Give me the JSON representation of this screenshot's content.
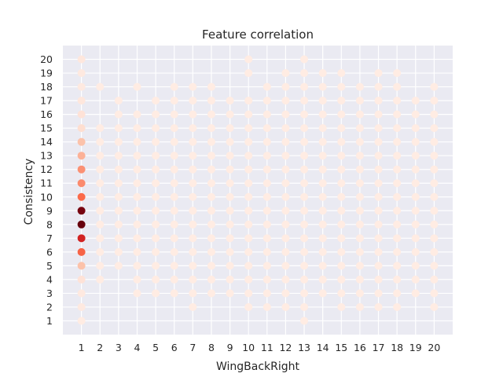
{
  "chart_data": {
    "type": "scatter",
    "title": "Feature correlation",
    "xlabel": "WingBackRight",
    "ylabel": "Consistency",
    "xlim": [
      0,
      21
    ],
    "ylim": [
      0,
      21
    ],
    "xticks": [
      1,
      2,
      3,
      4,
      5,
      6,
      7,
      8,
      9,
      10,
      11,
      12,
      13,
      14,
      15,
      16,
      17,
      18,
      19,
      20
    ],
    "yticks": [
      1,
      2,
      3,
      4,
      5,
      6,
      7,
      8,
      9,
      10,
      11,
      12,
      13,
      14,
      15,
      16,
      17,
      18,
      19,
      20
    ],
    "grid": true,
    "background": "#eaeaf2",
    "grid_color": "#ffffff",
    "colormap": "Reds",
    "color_scale": [
      {
        "t": 0.0,
        "color": "#fff5f0"
      },
      {
        "t": 0.25,
        "color": "#fcbba1"
      },
      {
        "t": 0.5,
        "color": "#fb6a4a"
      },
      {
        "t": 0.75,
        "color": "#cb181d"
      },
      {
        "t": 1.0,
        "color": "#67000d"
      }
    ],
    "points_note": "x, y, intensity (0-1 relative frequency)",
    "points": [
      [
        1,
        20,
        0.06
      ],
      [
        1,
        19,
        0.05
      ],
      [
        1,
        18,
        0.05
      ],
      [
        1,
        17,
        0.06
      ],
      [
        1,
        16,
        0.08
      ],
      [
        1,
        15,
        0.1
      ],
      [
        1,
        14,
        0.22
      ],
      [
        1,
        13,
        0.28
      ],
      [
        1,
        12,
        0.38
      ],
      [
        1,
        11,
        0.4
      ],
      [
        1,
        10,
        0.5
      ],
      [
        1,
        9,
        0.96
      ],
      [
        1,
        8,
        1.0
      ],
      [
        1,
        7,
        0.72
      ],
      [
        1,
        6,
        0.52
      ],
      [
        1,
        5,
        0.22
      ],
      [
        1,
        4,
        0.08
      ],
      [
        1,
        3,
        0.05
      ],
      [
        1,
        2,
        0.05
      ],
      [
        1,
        1,
        0.04
      ],
      [
        2,
        18,
        0.04
      ],
      [
        2,
        15,
        0.04
      ],
      [
        2,
        14,
        0.04
      ],
      [
        2,
        13,
        0.04
      ],
      [
        2,
        12,
        0.04
      ],
      [
        2,
        11,
        0.04
      ],
      [
        2,
        10,
        0.04
      ],
      [
        2,
        9,
        0.04
      ],
      [
        2,
        8,
        0.04
      ],
      [
        2,
        7,
        0.04
      ],
      [
        2,
        6,
        0.04
      ],
      [
        2,
        5,
        0.04
      ],
      [
        2,
        4,
        0.04
      ],
      [
        3,
        17,
        0.04
      ],
      [
        3,
        16,
        0.04
      ],
      [
        3,
        15,
        0.04
      ],
      [
        3,
        14,
        0.04
      ],
      [
        3,
        13,
        0.04
      ],
      [
        3,
        12,
        0.04
      ],
      [
        3,
        11,
        0.04
      ],
      [
        3,
        10,
        0.04
      ],
      [
        3,
        9,
        0.04
      ],
      [
        3,
        8,
        0.04
      ],
      [
        3,
        7,
        0.04
      ],
      [
        3,
        6,
        0.04
      ],
      [
        3,
        5,
        0.04
      ],
      [
        4,
        18,
        0.04
      ],
      [
        4,
        16,
        0.04
      ],
      [
        4,
        15,
        0.04
      ],
      [
        4,
        14,
        0.04
      ],
      [
        4,
        13,
        0.04
      ],
      [
        4,
        12,
        0.04
      ],
      [
        4,
        11,
        0.04
      ],
      [
        4,
        10,
        0.04
      ],
      [
        4,
        9,
        0.04
      ],
      [
        4,
        8,
        0.04
      ],
      [
        4,
        7,
        0.04
      ],
      [
        4,
        6,
        0.04
      ],
      [
        4,
        5,
        0.04
      ],
      [
        4,
        4,
        0.04
      ],
      [
        4,
        3,
        0.04
      ],
      [
        5,
        17,
        0.04
      ],
      [
        5,
        16,
        0.04
      ],
      [
        5,
        15,
        0.04
      ],
      [
        5,
        14,
        0.04
      ],
      [
        5,
        13,
        0.04
      ],
      [
        5,
        12,
        0.04
      ],
      [
        5,
        11,
        0.04
      ],
      [
        5,
        10,
        0.04
      ],
      [
        5,
        9,
        0.04
      ],
      [
        5,
        8,
        0.04
      ],
      [
        5,
        7,
        0.04
      ],
      [
        5,
        6,
        0.04
      ],
      [
        5,
        5,
        0.04
      ],
      [
        5,
        4,
        0.04
      ],
      [
        5,
        3,
        0.04
      ],
      [
        6,
        18,
        0.04
      ],
      [
        6,
        17,
        0.04
      ],
      [
        6,
        16,
        0.04
      ],
      [
        6,
        15,
        0.04
      ],
      [
        6,
        14,
        0.04
      ],
      [
        6,
        13,
        0.04
      ],
      [
        6,
        12,
        0.04
      ],
      [
        6,
        11,
        0.04
      ],
      [
        6,
        10,
        0.04
      ],
      [
        6,
        9,
        0.04
      ],
      [
        6,
        8,
        0.04
      ],
      [
        6,
        7,
        0.04
      ],
      [
        6,
        6,
        0.04
      ],
      [
        6,
        5,
        0.04
      ],
      [
        6,
        4,
        0.04
      ],
      [
        6,
        3,
        0.04
      ],
      [
        7,
        18,
        0.04
      ],
      [
        7,
        17,
        0.04
      ],
      [
        7,
        16,
        0.04
      ],
      [
        7,
        15,
        0.04
      ],
      [
        7,
        14,
        0.04
      ],
      [
        7,
        13,
        0.04
      ],
      [
        7,
        12,
        0.04
      ],
      [
        7,
        11,
        0.04
      ],
      [
        7,
        10,
        0.04
      ],
      [
        7,
        9,
        0.04
      ],
      [
        7,
        8,
        0.04
      ],
      [
        7,
        7,
        0.04
      ],
      [
        7,
        6,
        0.04
      ],
      [
        7,
        5,
        0.04
      ],
      [
        7,
        4,
        0.04
      ],
      [
        7,
        3,
        0.04
      ],
      [
        7,
        2,
        0.04
      ],
      [
        8,
        18,
        0.04
      ],
      [
        8,
        17,
        0.04
      ],
      [
        8,
        16,
        0.04
      ],
      [
        8,
        15,
        0.04
      ],
      [
        8,
        14,
        0.04
      ],
      [
        8,
        13,
        0.04
      ],
      [
        8,
        12,
        0.04
      ],
      [
        8,
        11,
        0.04
      ],
      [
        8,
        10,
        0.04
      ],
      [
        8,
        9,
        0.04
      ],
      [
        8,
        8,
        0.04
      ],
      [
        8,
        7,
        0.04
      ],
      [
        8,
        6,
        0.04
      ],
      [
        8,
        5,
        0.04
      ],
      [
        8,
        4,
        0.04
      ],
      [
        8,
        3,
        0.04
      ],
      [
        9,
        17,
        0.04
      ],
      [
        9,
        16,
        0.04
      ],
      [
        9,
        15,
        0.04
      ],
      [
        9,
        14,
        0.04
      ],
      [
        9,
        13,
        0.04
      ],
      [
        9,
        12,
        0.04
      ],
      [
        9,
        11,
        0.04
      ],
      [
        9,
        10,
        0.04
      ],
      [
        9,
        9,
        0.04
      ],
      [
        9,
        8,
        0.04
      ],
      [
        9,
        7,
        0.04
      ],
      [
        9,
        6,
        0.04
      ],
      [
        9,
        5,
        0.04
      ],
      [
        9,
        4,
        0.04
      ],
      [
        9,
        3,
        0.04
      ],
      [
        10,
        20,
        0.04
      ],
      [
        10,
        19,
        0.04
      ],
      [
        10,
        17,
        0.04
      ],
      [
        10,
        16,
        0.04
      ],
      [
        10,
        15,
        0.04
      ],
      [
        10,
        14,
        0.04
      ],
      [
        10,
        13,
        0.04
      ],
      [
        10,
        12,
        0.04
      ],
      [
        10,
        11,
        0.04
      ],
      [
        10,
        10,
        0.04
      ],
      [
        10,
        9,
        0.04
      ],
      [
        10,
        8,
        0.04
      ],
      [
        10,
        7,
        0.04
      ],
      [
        10,
        6,
        0.04
      ],
      [
        10,
        5,
        0.04
      ],
      [
        10,
        4,
        0.04
      ],
      [
        10,
        3,
        0.04
      ],
      [
        10,
        2,
        0.04
      ],
      [
        11,
        18,
        0.04
      ],
      [
        11,
        17,
        0.04
      ],
      [
        11,
        16,
        0.04
      ],
      [
        11,
        15,
        0.04
      ],
      [
        11,
        14,
        0.04
      ],
      [
        11,
        13,
        0.04
      ],
      [
        11,
        12,
        0.04
      ],
      [
        11,
        11,
        0.04
      ],
      [
        11,
        10,
        0.04
      ],
      [
        11,
        9,
        0.04
      ],
      [
        11,
        8,
        0.04
      ],
      [
        11,
        7,
        0.04
      ],
      [
        11,
        6,
        0.04
      ],
      [
        11,
        5,
        0.04
      ],
      [
        11,
        4,
        0.04
      ],
      [
        11,
        3,
        0.04
      ],
      [
        11,
        2,
        0.04
      ],
      [
        12,
        19,
        0.04
      ],
      [
        12,
        18,
        0.04
      ],
      [
        12,
        17,
        0.04
      ],
      [
        12,
        16,
        0.04
      ],
      [
        12,
        15,
        0.04
      ],
      [
        12,
        14,
        0.04
      ],
      [
        12,
        13,
        0.04
      ],
      [
        12,
        12,
        0.04
      ],
      [
        12,
        11,
        0.04
      ],
      [
        12,
        10,
        0.04
      ],
      [
        12,
        9,
        0.04
      ],
      [
        12,
        8,
        0.04
      ],
      [
        12,
        7,
        0.04
      ],
      [
        12,
        6,
        0.04
      ],
      [
        12,
        5,
        0.04
      ],
      [
        12,
        4,
        0.04
      ],
      [
        12,
        3,
        0.04
      ],
      [
        12,
        2,
        0.04
      ],
      [
        13,
        20,
        0.04
      ],
      [
        13,
        19,
        0.04
      ],
      [
        13,
        18,
        0.04
      ],
      [
        13,
        17,
        0.04
      ],
      [
        13,
        16,
        0.04
      ],
      [
        13,
        15,
        0.04
      ],
      [
        13,
        14,
        0.04
      ],
      [
        13,
        13,
        0.04
      ],
      [
        13,
        12,
        0.04
      ],
      [
        13,
        11,
        0.04
      ],
      [
        13,
        10,
        0.04
      ],
      [
        13,
        9,
        0.04
      ],
      [
        13,
        8,
        0.04
      ],
      [
        13,
        7,
        0.04
      ],
      [
        13,
        6,
        0.04
      ],
      [
        13,
        5,
        0.04
      ],
      [
        13,
        4,
        0.04
      ],
      [
        13,
        3,
        0.04
      ],
      [
        13,
        2,
        0.04
      ],
      [
        13,
        1,
        0.04
      ],
      [
        14,
        19,
        0.04
      ],
      [
        14,
        18,
        0.04
      ],
      [
        14,
        17,
        0.04
      ],
      [
        14,
        16,
        0.04
      ],
      [
        14,
        15,
        0.04
      ],
      [
        14,
        14,
        0.04
      ],
      [
        14,
        13,
        0.04
      ],
      [
        14,
        12,
        0.04
      ],
      [
        14,
        11,
        0.04
      ],
      [
        14,
        10,
        0.04
      ],
      [
        14,
        9,
        0.04
      ],
      [
        14,
        8,
        0.04
      ],
      [
        14,
        7,
        0.04
      ],
      [
        14,
        6,
        0.04
      ],
      [
        14,
        5,
        0.04
      ],
      [
        14,
        4,
        0.04
      ],
      [
        14,
        3,
        0.04
      ],
      [
        15,
        19,
        0.04
      ],
      [
        15,
        18,
        0.04
      ],
      [
        15,
        17,
        0.04
      ],
      [
        15,
        16,
        0.04
      ],
      [
        15,
        15,
        0.04
      ],
      [
        15,
        14,
        0.04
      ],
      [
        15,
        13,
        0.04
      ],
      [
        15,
        12,
        0.04
      ],
      [
        15,
        11,
        0.04
      ],
      [
        15,
        10,
        0.04
      ],
      [
        15,
        9,
        0.04
      ],
      [
        15,
        8,
        0.04
      ],
      [
        15,
        7,
        0.04
      ],
      [
        15,
        6,
        0.04
      ],
      [
        15,
        5,
        0.04
      ],
      [
        15,
        4,
        0.04
      ],
      [
        15,
        3,
        0.04
      ],
      [
        15,
        2,
        0.04
      ],
      [
        16,
        18,
        0.04
      ],
      [
        16,
        17,
        0.04
      ],
      [
        16,
        16,
        0.04
      ],
      [
        16,
        15,
        0.04
      ],
      [
        16,
        14,
        0.04
      ],
      [
        16,
        13,
        0.04
      ],
      [
        16,
        12,
        0.04
      ],
      [
        16,
        11,
        0.04
      ],
      [
        16,
        10,
        0.04
      ],
      [
        16,
        9,
        0.04
      ],
      [
        16,
        8,
        0.04
      ],
      [
        16,
        7,
        0.04
      ],
      [
        16,
        6,
        0.04
      ],
      [
        16,
        5,
        0.04
      ],
      [
        16,
        4,
        0.04
      ],
      [
        16,
        3,
        0.04
      ],
      [
        16,
        2,
        0.04
      ],
      [
        17,
        19,
        0.04
      ],
      [
        17,
        18,
        0.04
      ],
      [
        17,
        17,
        0.04
      ],
      [
        17,
        16,
        0.04
      ],
      [
        17,
        15,
        0.04
      ],
      [
        17,
        14,
        0.04
      ],
      [
        17,
        13,
        0.04
      ],
      [
        17,
        12,
        0.04
      ],
      [
        17,
        11,
        0.04
      ],
      [
        17,
        10,
        0.04
      ],
      [
        17,
        9,
        0.04
      ],
      [
        17,
        8,
        0.04
      ],
      [
        17,
        7,
        0.04
      ],
      [
        17,
        6,
        0.04
      ],
      [
        17,
        5,
        0.04
      ],
      [
        17,
        4,
        0.04
      ],
      [
        17,
        3,
        0.04
      ],
      [
        17,
        2,
        0.04
      ],
      [
        18,
        19,
        0.04
      ],
      [
        18,
        18,
        0.04
      ],
      [
        18,
        17,
        0.04
      ],
      [
        18,
        16,
        0.04
      ],
      [
        18,
        15,
        0.04
      ],
      [
        18,
        14,
        0.04
      ],
      [
        18,
        13,
        0.04
      ],
      [
        18,
        12,
        0.04
      ],
      [
        18,
        11,
        0.04
      ],
      [
        18,
        10,
        0.04
      ],
      [
        18,
        9,
        0.04
      ],
      [
        18,
        8,
        0.04
      ],
      [
        18,
        7,
        0.04
      ],
      [
        18,
        6,
        0.04
      ],
      [
        18,
        5,
        0.04
      ],
      [
        18,
        4,
        0.04
      ],
      [
        18,
        3,
        0.04
      ],
      [
        18,
        2,
        0.04
      ],
      [
        19,
        17,
        0.04
      ],
      [
        19,
        16,
        0.04
      ],
      [
        19,
        15,
        0.04
      ],
      [
        19,
        14,
        0.04
      ],
      [
        19,
        13,
        0.04
      ],
      [
        19,
        12,
        0.04
      ],
      [
        19,
        11,
        0.04
      ],
      [
        19,
        10,
        0.04
      ],
      [
        19,
        9,
        0.04
      ],
      [
        19,
        8,
        0.04
      ],
      [
        19,
        7,
        0.04
      ],
      [
        19,
        6,
        0.04
      ],
      [
        19,
        5,
        0.04
      ],
      [
        19,
        4,
        0.04
      ],
      [
        19,
        3,
        0.04
      ],
      [
        20,
        18,
        0.04
      ],
      [
        20,
        17,
        0.04
      ],
      [
        20,
        16,
        0.04
      ],
      [
        20,
        15,
        0.04
      ],
      [
        20,
        14,
        0.04
      ],
      [
        20,
        13,
        0.04
      ],
      [
        20,
        12,
        0.04
      ],
      [
        20,
        11,
        0.04
      ],
      [
        20,
        10,
        0.04
      ],
      [
        20,
        9,
        0.04
      ],
      [
        20,
        8,
        0.04
      ],
      [
        20,
        7,
        0.04
      ],
      [
        20,
        6,
        0.04
      ],
      [
        20,
        5,
        0.04
      ],
      [
        20,
        4,
        0.04
      ],
      [
        20,
        3,
        0.04
      ],
      [
        20,
        2,
        0.04
      ]
    ]
  }
}
